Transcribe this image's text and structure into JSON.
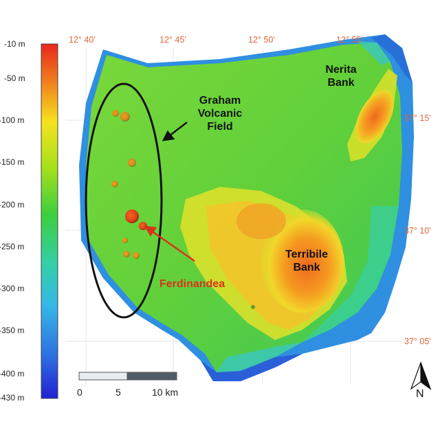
{
  "legend": {
    "depth_labels": [
      "-10 m",
      "-50 m",
      "-100 m",
      "-150 m",
      "-200 m",
      "-250 m",
      "-300 m",
      "-350 m",
      "-400 m",
      "-430 m"
    ],
    "depth_values": [
      -10,
      -50,
      -100,
      -150,
      -200,
      -250,
      -300,
      -350,
      -400,
      -430
    ],
    "colors": [
      "#e8281c",
      "#f28a1e",
      "#f6e21e",
      "#a6e01c",
      "#3ccf3e",
      "#33cfa8",
      "#35b7e8",
      "#2e6fe0",
      "#2121d4"
    ]
  },
  "coordinates": {
    "longitude_labels": [
      "12° 40’",
      "12° 45’",
      "12° 50’",
      "12° 55’"
    ],
    "latitude_labels": [
      "37° 15’",
      "37° 10’",
      "37° 05’"
    ]
  },
  "features": {
    "graham": "Graham\nVolcanic\nField",
    "nerita": "Nerita\nBank",
    "terribile": "Terribile\nBank",
    "ferdinandea": "Ferdinandea"
  },
  "scale_bar": {
    "labels": [
      "0",
      "5",
      "10 km"
    ]
  },
  "north_arrow": {
    "label": "N"
  },
  "colors": {
    "coord_text": "#e0663a",
    "ferdinandea_text": "#d9331a",
    "feature_text": "#111111"
  }
}
